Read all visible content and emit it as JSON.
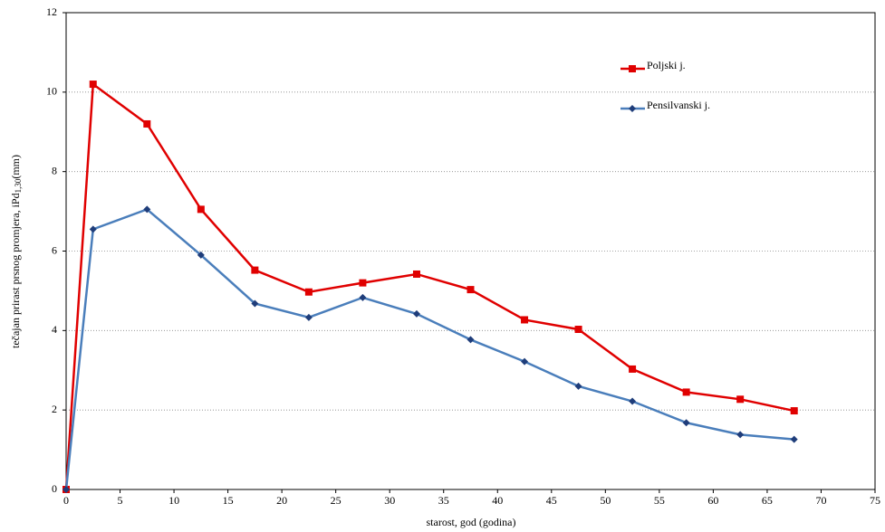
{
  "chart_data": {
    "type": "line",
    "x_label": "starost, god (godina)",
    "y_label": {
      "text": "tečajan prirast prsnog promjera, iPd",
      "sub": "1,30",
      "suffix": "(mm)"
    },
    "x": [
      0,
      2.5,
      7.5,
      12.5,
      17.5,
      22.5,
      27.5,
      32.5,
      37.5,
      42.5,
      47.5,
      52.5,
      57.5,
      62.5,
      67.5
    ],
    "series": [
      {
        "name": "Poljski j.",
        "color": "#e00000",
        "marker": "square",
        "values": [
          0,
          10.2,
          9.2,
          7.05,
          5.52,
          4.97,
          5.2,
          5.42,
          5.03,
          4.27,
          4.03,
          3.03,
          2.45,
          2.27,
          1.98
        ]
      },
      {
        "name": "Pensilvanski j.",
        "color": "#4a7ebb",
        "marker": "diamond",
        "marker_color": "#1f3d7a",
        "values": [
          0,
          6.55,
          7.05,
          5.9,
          4.68,
          4.33,
          4.83,
          4.42,
          3.77,
          3.22,
          2.6,
          2.22,
          1.68,
          1.38,
          1.26
        ]
      }
    ],
    "xlim": [
      0,
      75
    ],
    "xticks": [
      0,
      5,
      10,
      15,
      20,
      25,
      30,
      35,
      40,
      45,
      50,
      55,
      60,
      65,
      70,
      75
    ],
    "ylim": [
      0,
      12
    ],
    "yticks": [
      0,
      2,
      4,
      6,
      8,
      10,
      12
    ],
    "grid": true,
    "legend": "upper right"
  }
}
